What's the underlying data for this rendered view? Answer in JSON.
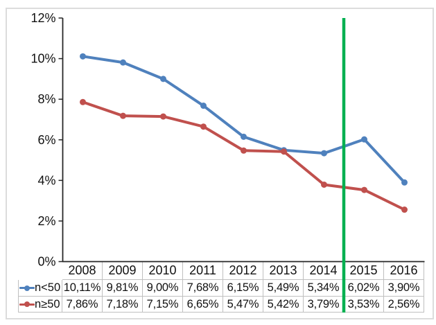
{
  "frame": {
    "background": "#ffffff",
    "border_color": "#dcdcdc"
  },
  "chart_data": {
    "type": "line",
    "title": "",
    "xlabel": "",
    "ylabel": "",
    "categories": [
      "2008",
      "2009",
      "2010",
      "2011",
      "2012",
      "2013",
      "2014",
      "2015",
      "2016"
    ],
    "series": [
      {
        "name": "n<50",
        "color": "#4F81BD",
        "marker": "circle",
        "values": [
          10.11,
          9.81,
          9.0,
          7.68,
          6.15,
          5.49,
          5.34,
          6.02,
          3.9
        ],
        "display_values": [
          "10,11%",
          "9,81%",
          "9,00%",
          "7,68%",
          "6,15%",
          "5,49%",
          "5,34%",
          "6,02%",
          "3,90%"
        ]
      },
      {
        "name": "n≥50",
        "color": "#C0504D",
        "marker": "circle",
        "values": [
          7.86,
          7.18,
          7.15,
          6.65,
          5.47,
          5.42,
          3.79,
          3.53,
          2.56
        ],
        "display_values": [
          "7,86%",
          "7,18%",
          "7,15%",
          "6,65%",
          "5,47%",
          "5,42%",
          "3,79%",
          "3,53%",
          "2,56%"
        ]
      }
    ],
    "ylim": [
      0,
      12
    ],
    "yticks": [
      {
        "value": 0,
        "label": "0%"
      },
      {
        "value": 2,
        "label": "2%"
      },
      {
        "value": 4,
        "label": "4%"
      },
      {
        "value": 6,
        "label": "6%"
      },
      {
        "value": 8,
        "label": "8%"
      },
      {
        "value": 10,
        "label": "10%"
      },
      {
        "value": 12,
        "label": "12%"
      }
    ],
    "grid": false,
    "legend_position": "data-table-left",
    "data_table": true,
    "axis_color": "#262626",
    "table_border_color": "#bfbfbf",
    "annotations": [
      {
        "type": "vline",
        "between_categories": [
          "2014",
          "2015"
        ],
        "color": "#00B050",
        "spans": "plot-and-table"
      }
    ]
  }
}
